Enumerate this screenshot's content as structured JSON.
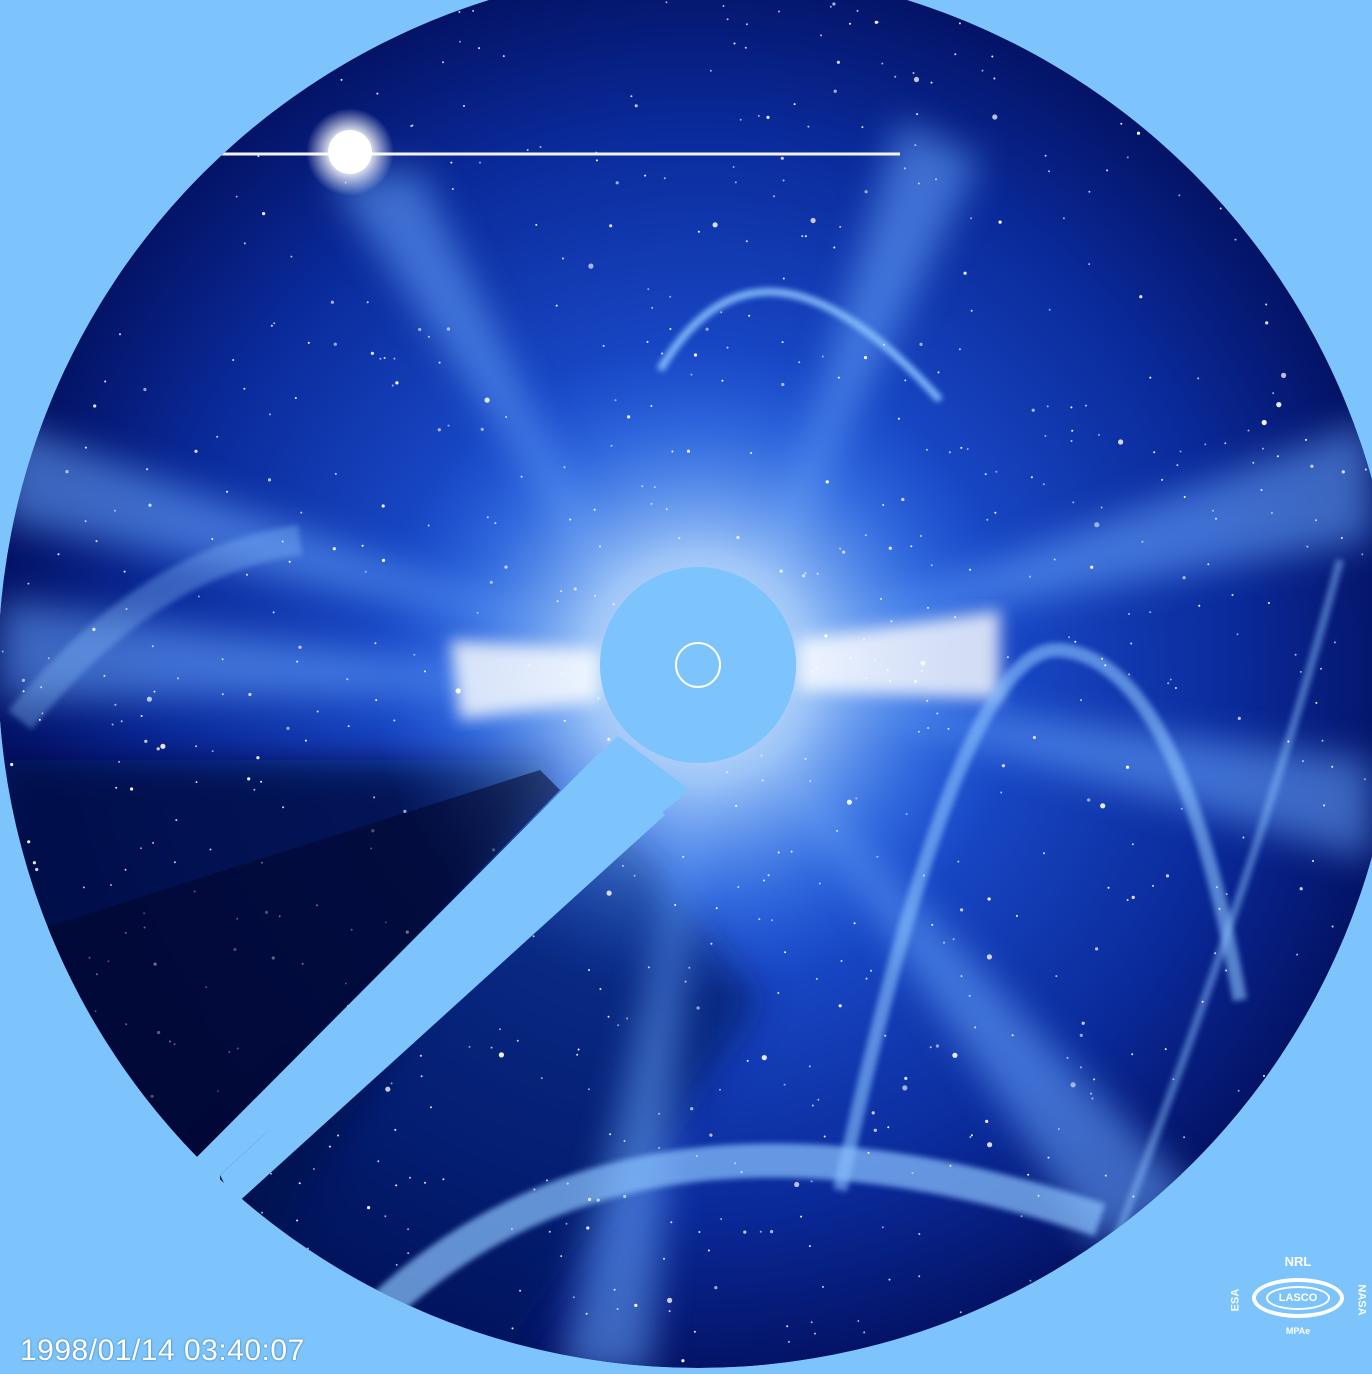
{
  "image": {
    "timestamp": "1998/01/14 03:40:07",
    "logo": {
      "top": "NRL",
      "center": "LASCO",
      "left": "ESA",
      "right": "NASA",
      "bottom": "MPAe"
    }
  },
  "colors": {
    "background": "#7cc4fb",
    "sky_dark": "#020a4a",
    "sky_mid": "#1640c8",
    "corona_light": "#9fd3ff",
    "occulter": "#7cc4fb"
  }
}
